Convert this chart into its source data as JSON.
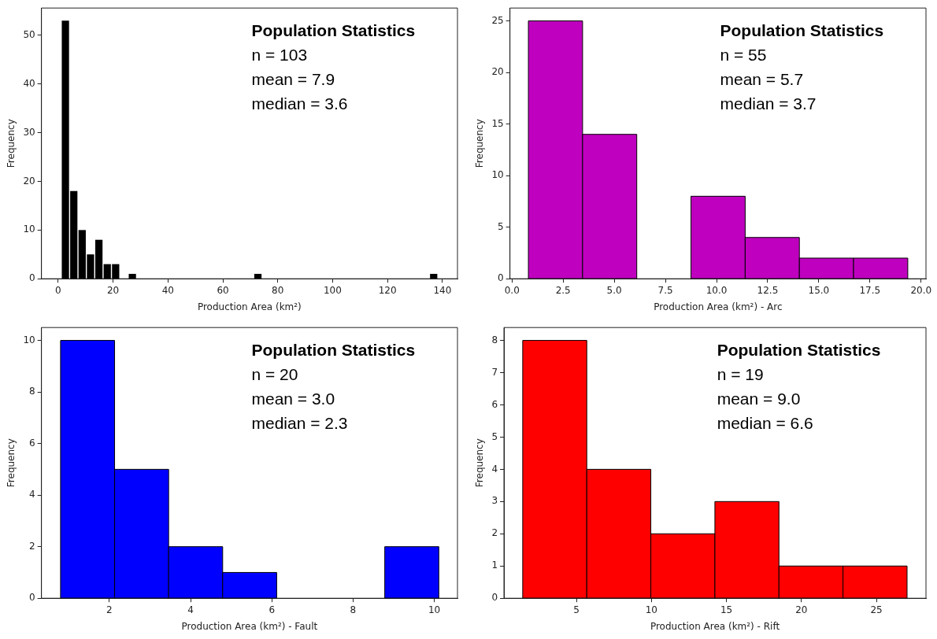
{
  "chart_data": [
    {
      "type": "histogram",
      "xlabel": "Production Area (km²)",
      "ylabel": "Frequency",
      "color": "#000000",
      "annotations": [
        "Population Statistics",
        "n = 103",
        "mean = 7.9",
        "median = 3.6"
      ],
      "bins": [
        1.1,
        4.15,
        7.2,
        10.25,
        13.3,
        16.35,
        19.4,
        22.45,
        25.5,
        28.55,
        31.6,
        34.65,
        37.7,
        40.75,
        43.8,
        46.85,
        49.9,
        52.95,
        56.0,
        59.05,
        62.1,
        65.15,
        68.2,
        71.25,
        74.3,
        77.35,
        80.4,
        83.45,
        86.5,
        89.55,
        92.6,
        95.65,
        98.7,
        101.75,
        104.8,
        107.85,
        110.9,
        113.95,
        117.0,
        120.05,
        123.1,
        126.15,
        129.2,
        132.25,
        135.3,
        138.35
      ],
      "values": [
        53,
        18,
        10,
        5,
        8,
        3,
        3,
        0,
        1,
        0,
        0,
        0,
        0,
        0,
        0,
        0,
        0,
        0,
        0,
        0,
        0,
        0,
        0,
        1,
        0,
        0,
        0,
        0,
        0,
        0,
        0,
        0,
        0,
        0,
        0,
        0,
        0,
        0,
        0,
        0,
        0,
        0,
        0,
        0,
        1
      ],
      "xlim": [
        -6.1,
        145.5
      ],
      "ylim": [
        0,
        55.6
      ],
      "xticks": [
        0,
        20,
        40,
        60,
        80,
        100,
        120,
        140
      ],
      "yticks": [
        0,
        10,
        20,
        30,
        40,
        50
      ]
    },
    {
      "type": "histogram",
      "xlabel": "Production Area (km²) - Arc",
      "ylabel": "Frequency",
      "color": "#bf00bf",
      "annotations": [
        "Population Statistics",
        "n = 55",
        "mean = 5.7",
        "median = 3.7"
      ],
      "bins": [
        0.8,
        3.45,
        6.1,
        8.75,
        11.4,
        14.05,
        16.7,
        19.35
      ],
      "values": [
        25,
        14,
        0,
        8,
        4,
        2,
        2
      ],
      "xlim": [
        -0.1,
        20.24
      ],
      "ylim": [
        0,
        26.25
      ],
      "xticks": [
        {
          "value": 0,
          "label": "0.0"
        },
        {
          "value": 2.5,
          "label": "2.5"
        },
        {
          "value": 5,
          "label": "5.0"
        },
        {
          "value": 7.5,
          "label": "7.5"
        },
        {
          "value": 10,
          "label": "10.0"
        },
        {
          "value": 12.5,
          "label": "12.5"
        },
        {
          "value": 15,
          "label": "15.0"
        },
        {
          "value": 17.5,
          "label": "17.5"
        },
        {
          "value": 20,
          "label": "20.0"
        }
      ],
      "yticks": [
        0,
        5,
        10,
        15,
        20,
        25
      ]
    },
    {
      "type": "histogram",
      "xlabel": "Production Area (km²) - Fault",
      "ylabel": "Frequency",
      "color": "#0000ff",
      "annotations": [
        "Population Statistics",
        "n = 20",
        "mean = 3.0",
        "median = 2.3"
      ],
      "bins": [
        0.8,
        2.13,
        3.46,
        4.79,
        6.12,
        7.45,
        8.78,
        10.11
      ],
      "values": [
        10,
        5,
        2,
        1,
        0,
        0,
        2
      ],
      "xlim": [
        0.33,
        10.57
      ],
      "ylim": [
        0,
        10.5
      ],
      "xticks": [
        2,
        4,
        6,
        8,
        10
      ],
      "yticks": [
        0,
        2,
        4,
        6,
        8,
        10
      ]
    },
    {
      "type": "histogram",
      "xlabel": "Production Area (km²) - Rift",
      "ylabel": "Frequency",
      "color": "#ff0000",
      "annotations": [
        "Population Statistics",
        "n = 19",
        "mean = 9.0",
        "median = 6.6"
      ],
      "bins": [
        1.42,
        5.69,
        9.96,
        14.23,
        18.5,
        22.77,
        27.04
      ],
      "values": [
        8,
        4,
        2,
        3,
        1,
        1
      ],
      "xlim": [
        0.17,
        28.3
      ],
      "ylim": [
        0,
        8.4
      ],
      "xticks": [
        5,
        10,
        15,
        20,
        25
      ],
      "yticks": [
        0,
        1,
        2,
        3,
        4,
        5,
        6,
        7,
        8
      ]
    }
  ]
}
